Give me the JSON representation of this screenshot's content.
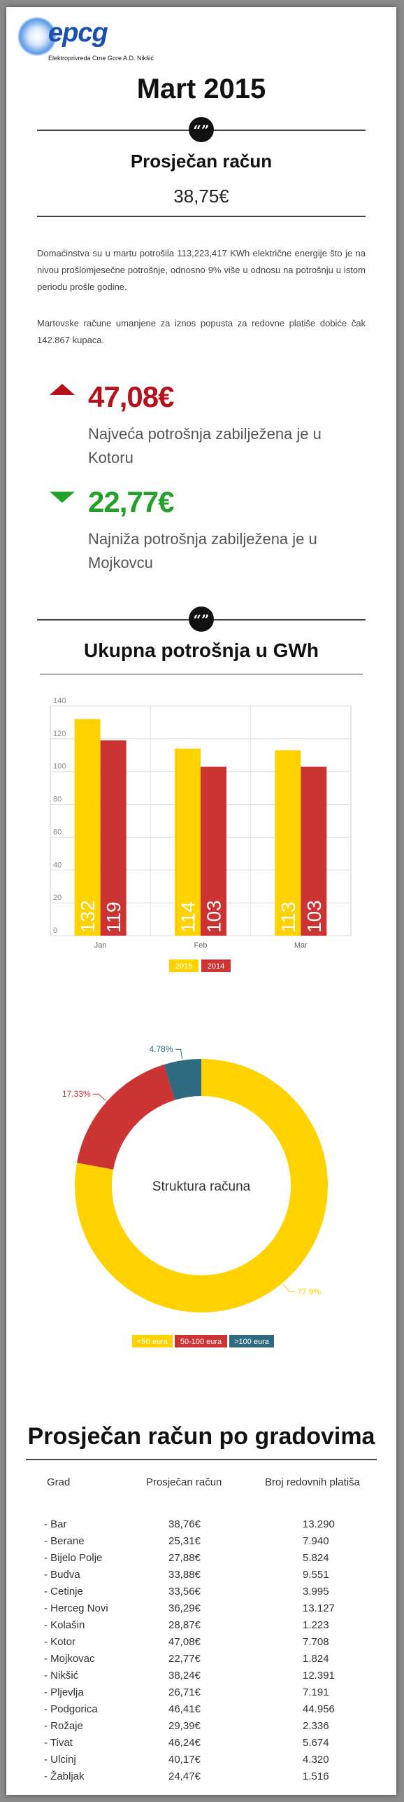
{
  "logo": {
    "brand": "epcg",
    "company": "Elektroprivreda Crne Gore A.D. Nikšić"
  },
  "title": "Mart 2015",
  "quote_glyph": "“”",
  "average_section": {
    "heading": "Prosječan račun",
    "value": "38,75€"
  },
  "paragraphs": [
    "Domaćinstva su u martu potrošila 113,223,417 KWh električne energije što je na nivou prošlomjesečne potrošnje, odnosno 9% više u odnosu na potrošnju u istom periodu prošle godine.",
    "Martovske račune umanjene za iznos popusta za redovne platiše dobiće čak 142.867 kupaca."
  ],
  "highest": {
    "value": "47,08€",
    "text": "Najveća potrošnja zabilježena je u Kotoru",
    "color": "#b5121b"
  },
  "lowest": {
    "value": "22,77€",
    "text": "Najniža potrošnja zabilježena je u Mojkovcu",
    "color": "#22a02a"
  },
  "consumption_heading": "Ukupna potrošnja u GWh",
  "chart_data": [
    {
      "type": "bar",
      "categories": [
        "Jan",
        "Feb",
        "Mar"
      ],
      "series": [
        {
          "name": "2015",
          "values": [
            132,
            114,
            113
          ],
          "color": "#ffd200"
        },
        {
          "name": "2014",
          "values": [
            119,
            103,
            103
          ],
          "color": "#cc3333"
        }
      ],
      "ylim": [
        0,
        140
      ],
      "yticks": [
        0,
        20,
        40,
        60,
        80,
        100,
        120,
        140
      ],
      "grid": true,
      "legend": "bottom"
    },
    {
      "type": "pie",
      "center_label": "Struktura računa",
      "slices": [
        {
          "name": "<50 eura",
          "value": 77.9,
          "label": "77.9%",
          "color": "#ffd200"
        },
        {
          "name": "50-100 eura",
          "value": 17.33,
          "label": "17.33%",
          "color": "#cc3333"
        },
        {
          "name": ">100 eura",
          "value": 4.78,
          "label": "4.78%",
          "color": "#2e6b80"
        }
      ],
      "legend": "bottom"
    }
  ],
  "city_table": {
    "title": "Prosječan račun po gradovima",
    "headers": [
      "Grad",
      "Prosječan račun",
      "Broj redovnih platiša"
    ],
    "rows": [
      [
        "- Bar",
        "38,76€",
        "13.290"
      ],
      [
        "- Berane",
        "25,31€",
        "7.940"
      ],
      [
        "- Bijelo Polje",
        "27,88€",
        "5.824"
      ],
      [
        "- Budva",
        "33,88€",
        "9.551"
      ],
      [
        "- Cetinje",
        "33,56€",
        "3.995"
      ],
      [
        "- Herceg Novi",
        "36,29€",
        "13.127"
      ],
      [
        "- Kolašin",
        "28,87€",
        "1.223"
      ],
      [
        "- Kotor",
        "47,08€",
        "7.708"
      ],
      [
        "- Mojkovac",
        "22,77€",
        "1.824"
      ],
      [
        "- Nikšić",
        "38,24€",
        "12.391"
      ],
      [
        "- Pljevlja",
        "26,71€",
        "7.191"
      ],
      [
        "- Podgorica",
        "46,41€",
        "44.956"
      ],
      [
        "- Rožaje",
        "29,39€",
        "2.336"
      ],
      [
        "- Tivat",
        "46,24€",
        "5.674"
      ],
      [
        "- Ulcinj",
        "40,17€",
        "4.320"
      ],
      [
        "- Žabljak",
        "24,47€",
        "1.516"
      ]
    ]
  }
}
